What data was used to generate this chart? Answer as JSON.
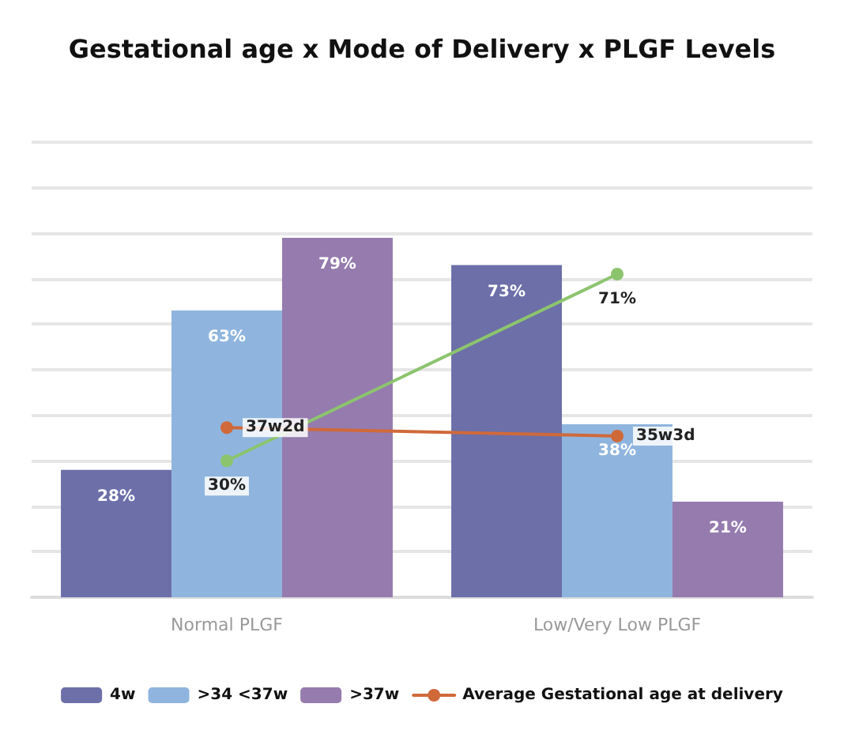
{
  "chart_data": {
    "type": "bar",
    "title": "Gestational age x Mode of Delivery x PLGF Levels",
    "categories": [
      "Normal PLGF",
      "Low/Very Low PLGF"
    ],
    "series": [
      {
        "name": "4w",
        "color": "#6c6fa8",
        "values": [
          28,
          73
        ],
        "value_labels": [
          "28%",
          "73%"
        ]
      },
      {
        "name": ">34 <37w",
        "color": "#8fb5de",
        "values": [
          63,
          38
        ],
        "value_labels": [
          "63%",
          "38%"
        ]
      },
      {
        "name": ">37w",
        "color": "#957bae",
        "values": [
          79,
          21
        ],
        "value_labels": [
          "79%",
          "21%"
        ]
      },
      {
        "name": "Average Gestational age at delivery",
        "type": "line",
        "color": "#d0693a",
        "values": [
          37.29,
          35.43
        ],
        "value_labels": [
          "37w2d",
          "35w3d"
        ]
      },
      {
        "type": "line",
        "color": "#8cc46e",
        "values": [
          30,
          71
        ],
        "value_labels": [
          "30%",
          "71%"
        ]
      }
    ],
    "ylim": [
      0,
      100
    ],
    "yticks": [
      {
        "value": 0,
        "label": null
      },
      {
        "value": 10,
        "label": null
      },
      {
        "value": 20,
        "label": null
      },
      {
        "value": 30,
        "label": null
      },
      {
        "value": 40,
        "label": null
      },
      {
        "value": 50,
        "label": null
      },
      {
        "value": 60,
        "label": null
      },
      {
        "value": 70,
        "label": null
      },
      {
        "value": 80,
        "label": null
      },
      {
        "value": 90,
        "label": null
      },
      {
        "value": 100,
        "label": null
      }
    ],
    "tick_labels": "x",
    "grid": "y",
    "legend": "bottom",
    "marker": "circle"
  }
}
